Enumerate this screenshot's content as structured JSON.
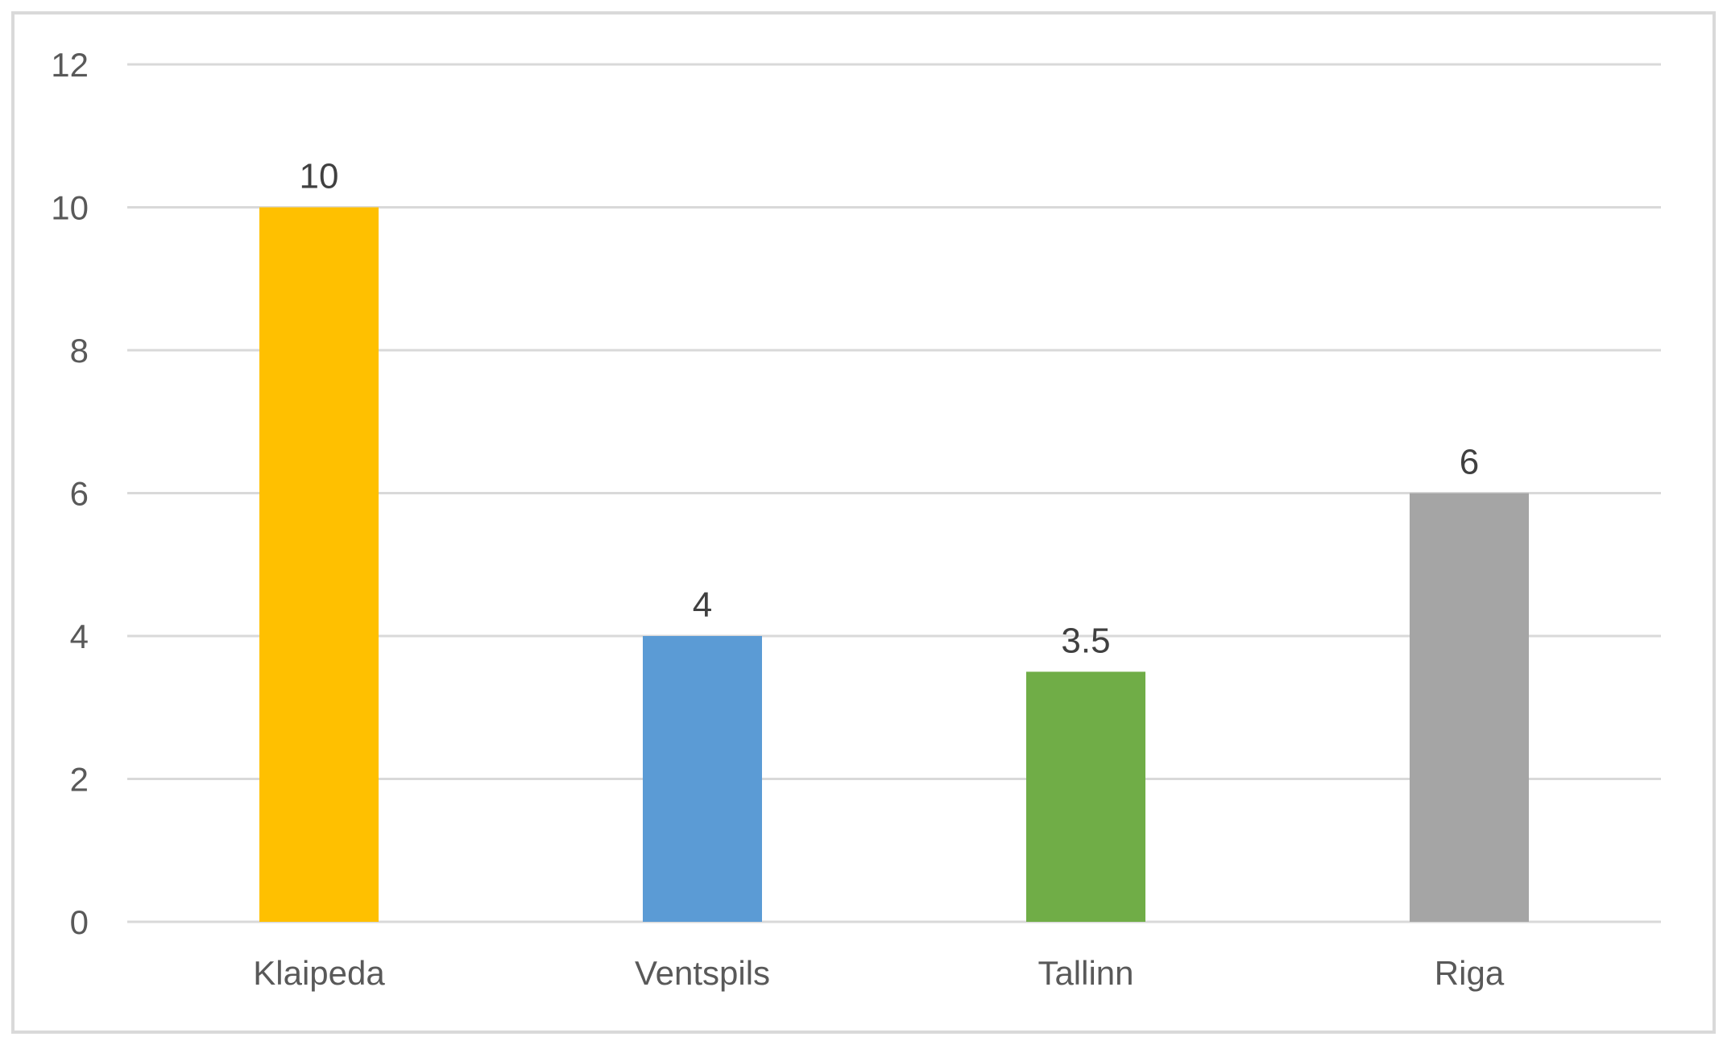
{
  "chart_data": {
    "type": "bar",
    "categories": [
      "Klaipeda",
      "Ventspils",
      "Tallinn",
      "Riga"
    ],
    "values": [
      10,
      4,
      3.5,
      6
    ],
    "value_labels": [
      "10",
      "4",
      "3.5",
      "6"
    ],
    "bar_colors": [
      "#FFC000",
      "#5B9BD5",
      "#70AD47",
      "#A5A5A5"
    ],
    "title": "",
    "xlabel": "",
    "ylabel": "",
    "ylim": [
      0,
      12
    ],
    "yticks": [
      0,
      2,
      4,
      6,
      8,
      10,
      12
    ],
    "ytick_labels": [
      "0",
      "2",
      "4",
      "6",
      "8",
      "10",
      "12"
    ],
    "grid": true,
    "legend": "none"
  }
}
